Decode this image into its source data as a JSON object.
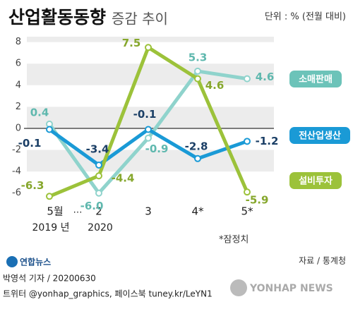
{
  "chart_data": {
    "type": "line",
    "title": "산업활동동향",
    "subtitle": "증감 추이",
    "unit": "단위 : % (전월 대비)",
    "categories": [
      "5월",
      "2",
      "3",
      "4*",
      "5*"
    ],
    "break_label": "…",
    "year_labels": [
      "2019 년",
      "2020"
    ],
    "series": [
      {
        "name": "소매판매",
        "color": "#8fd3cc",
        "label_color": "#5fb8ae",
        "values": [
          0.4,
          -6.0,
          -0.9,
          5.3,
          4.6
        ],
        "value_labels": [
          "0.4",
          "-6.0",
          "-0.9",
          "5.3",
          "4.6"
        ]
      },
      {
        "name": "전산업생산",
        "color": "#1a9ad6",
        "label_color": "#1b3f66",
        "values": [
          -0.1,
          -3.4,
          -0.1,
          -2.8,
          -1.2
        ],
        "value_labels": [
          "-0.1",
          "-3.4",
          "-0.1",
          "-2.8",
          "-1.2"
        ]
      },
      {
        "name": "설비투자",
        "color": "#9cc23a",
        "label_color": "#86a72c",
        "values": [
          -6.3,
          -4.4,
          7.5,
          4.6,
          -5.9
        ],
        "value_labels": [
          "-6.3",
          "-4.4",
          "7.5",
          "4.6",
          "-5.9"
        ]
      }
    ],
    "ylim": [
      -7,
      8.5
    ],
    "yticks": [
      -6,
      -4,
      -2,
      0,
      2,
      4,
      6,
      8
    ],
    "grid": true,
    "note": "*잠정치",
    "source": "자료 / 통계청"
  },
  "footer": {
    "logo": "연합뉴스",
    "byline": "박영석 기자 / 20200630",
    "social": "트위터 @yonhap_graphics, 페이스북 tuney.kr/LeYN1",
    "agency": "YONHAP NEWS"
  }
}
